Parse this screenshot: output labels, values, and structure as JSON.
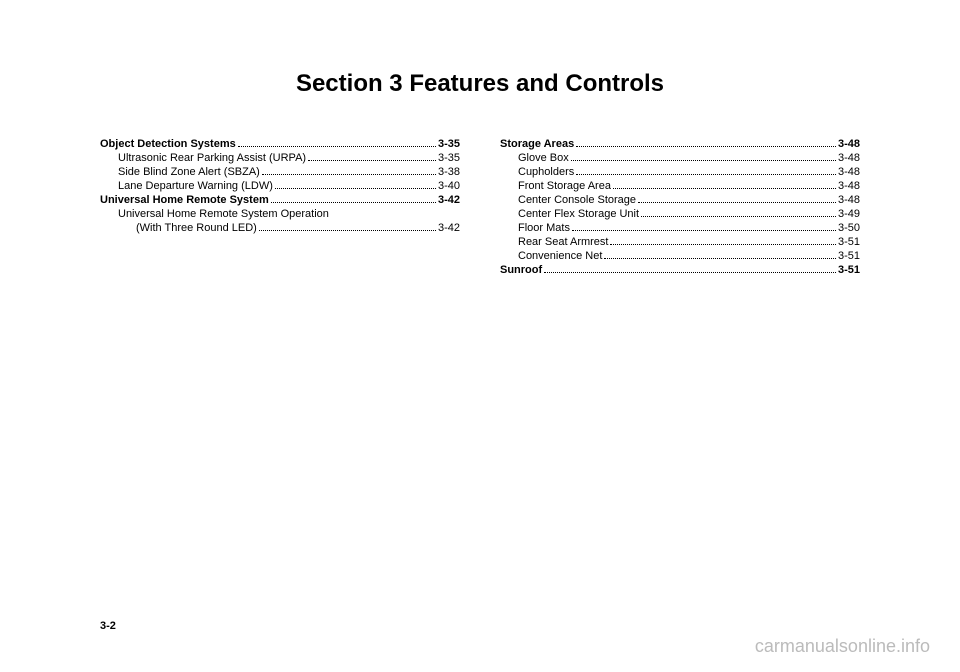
{
  "section_title": "Section 3    Features and Controls",
  "page_number": "3-2",
  "watermark": "carmanualsonline.info",
  "left_column": [
    {
      "label": "Object Detection Systems",
      "page": "3-35",
      "heading": true,
      "sub": false
    },
    {
      "label": "Ultrasonic Rear Parking Assist (URPA)",
      "page": "3-35",
      "heading": false,
      "sub": true
    },
    {
      "label": "Side Blind Zone Alert (SBZA)",
      "page": "3-38",
      "heading": false,
      "sub": true
    },
    {
      "label": "Lane Departure Warning (LDW)",
      "page": "3-40",
      "heading": false,
      "sub": true
    },
    {
      "label": "Universal Home Remote System",
      "page": "3-42",
      "heading": true,
      "sub": false
    },
    {
      "label": "Universal Home Remote System Operation (With Three Round LED)",
      "page": "3-42",
      "heading": false,
      "sub": true,
      "multiline": true,
      "line1": "Universal Home Remote System Operation",
      "line2": "(With Three Round LED)"
    }
  ],
  "right_column": [
    {
      "label": "Storage Areas",
      "page": "3-48",
      "heading": true,
      "sub": false
    },
    {
      "label": "Glove Box",
      "page": "3-48",
      "heading": false,
      "sub": true
    },
    {
      "label": "Cupholders",
      "page": "3-48",
      "heading": false,
      "sub": true
    },
    {
      "label": "Front Storage Area",
      "page": "3-48",
      "heading": false,
      "sub": true
    },
    {
      "label": "Center Console Storage",
      "page": "3-48",
      "heading": false,
      "sub": true
    },
    {
      "label": "Center Flex Storage Unit",
      "page": "3-49",
      "heading": false,
      "sub": true
    },
    {
      "label": "Floor Mats",
      "page": "3-50",
      "heading": false,
      "sub": true
    },
    {
      "label": "Rear Seat Armrest",
      "page": "3-51",
      "heading": false,
      "sub": true
    },
    {
      "label": "Convenience Net",
      "page": "3-51",
      "heading": false,
      "sub": true
    },
    {
      "label": "Sunroof",
      "page": "3-51",
      "heading": true,
      "sub": false
    }
  ]
}
